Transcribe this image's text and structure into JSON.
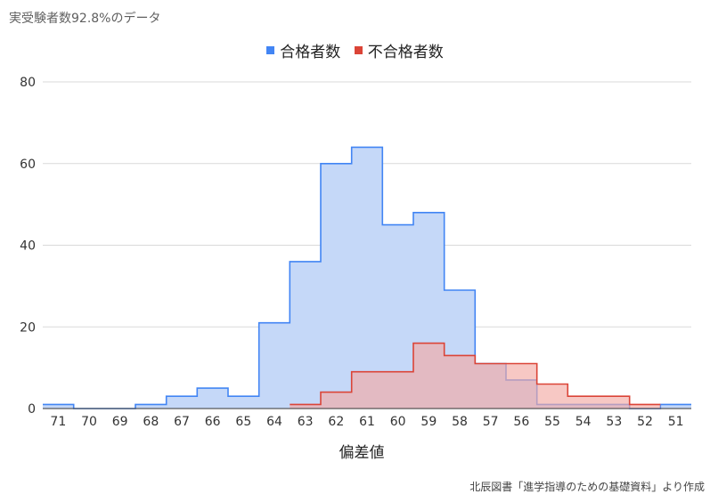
{
  "title": "実受験者数92.8%のデータ",
  "source": "北辰図書「進学指導のための基礎資料」より作成",
  "chart_data": {
    "type": "area",
    "step": true,
    "categories": [
      "71",
      "70",
      "69",
      "68",
      "67",
      "66",
      "65",
      "64",
      "63",
      "62",
      "61",
      "60",
      "59",
      "58",
      "57",
      "56",
      "55",
      "54",
      "53",
      "52",
      "51"
    ],
    "series": [
      {
        "name": "合格者数",
        "color": "#4285f4",
        "values": [
          1,
          0,
          0,
          1,
          3,
          5,
          3,
          21,
          36,
          60,
          64,
          45,
          48,
          29,
          11,
          7,
          1,
          1,
          1,
          0,
          1
        ]
      },
      {
        "name": "不合格者数",
        "color": "#db4437",
        "values": [
          null,
          null,
          null,
          null,
          null,
          null,
          null,
          null,
          1,
          4,
          9,
          9,
          16,
          13,
          11,
          11,
          6,
          3,
          3,
          1,
          null
        ]
      }
    ],
    "xlabel": "偏差値",
    "ylabel": "",
    "ylim": [
      0,
      80
    ],
    "yticks": [
      0,
      20,
      40,
      60,
      80
    ],
    "grid": true,
    "legend_position": "top-center"
  }
}
